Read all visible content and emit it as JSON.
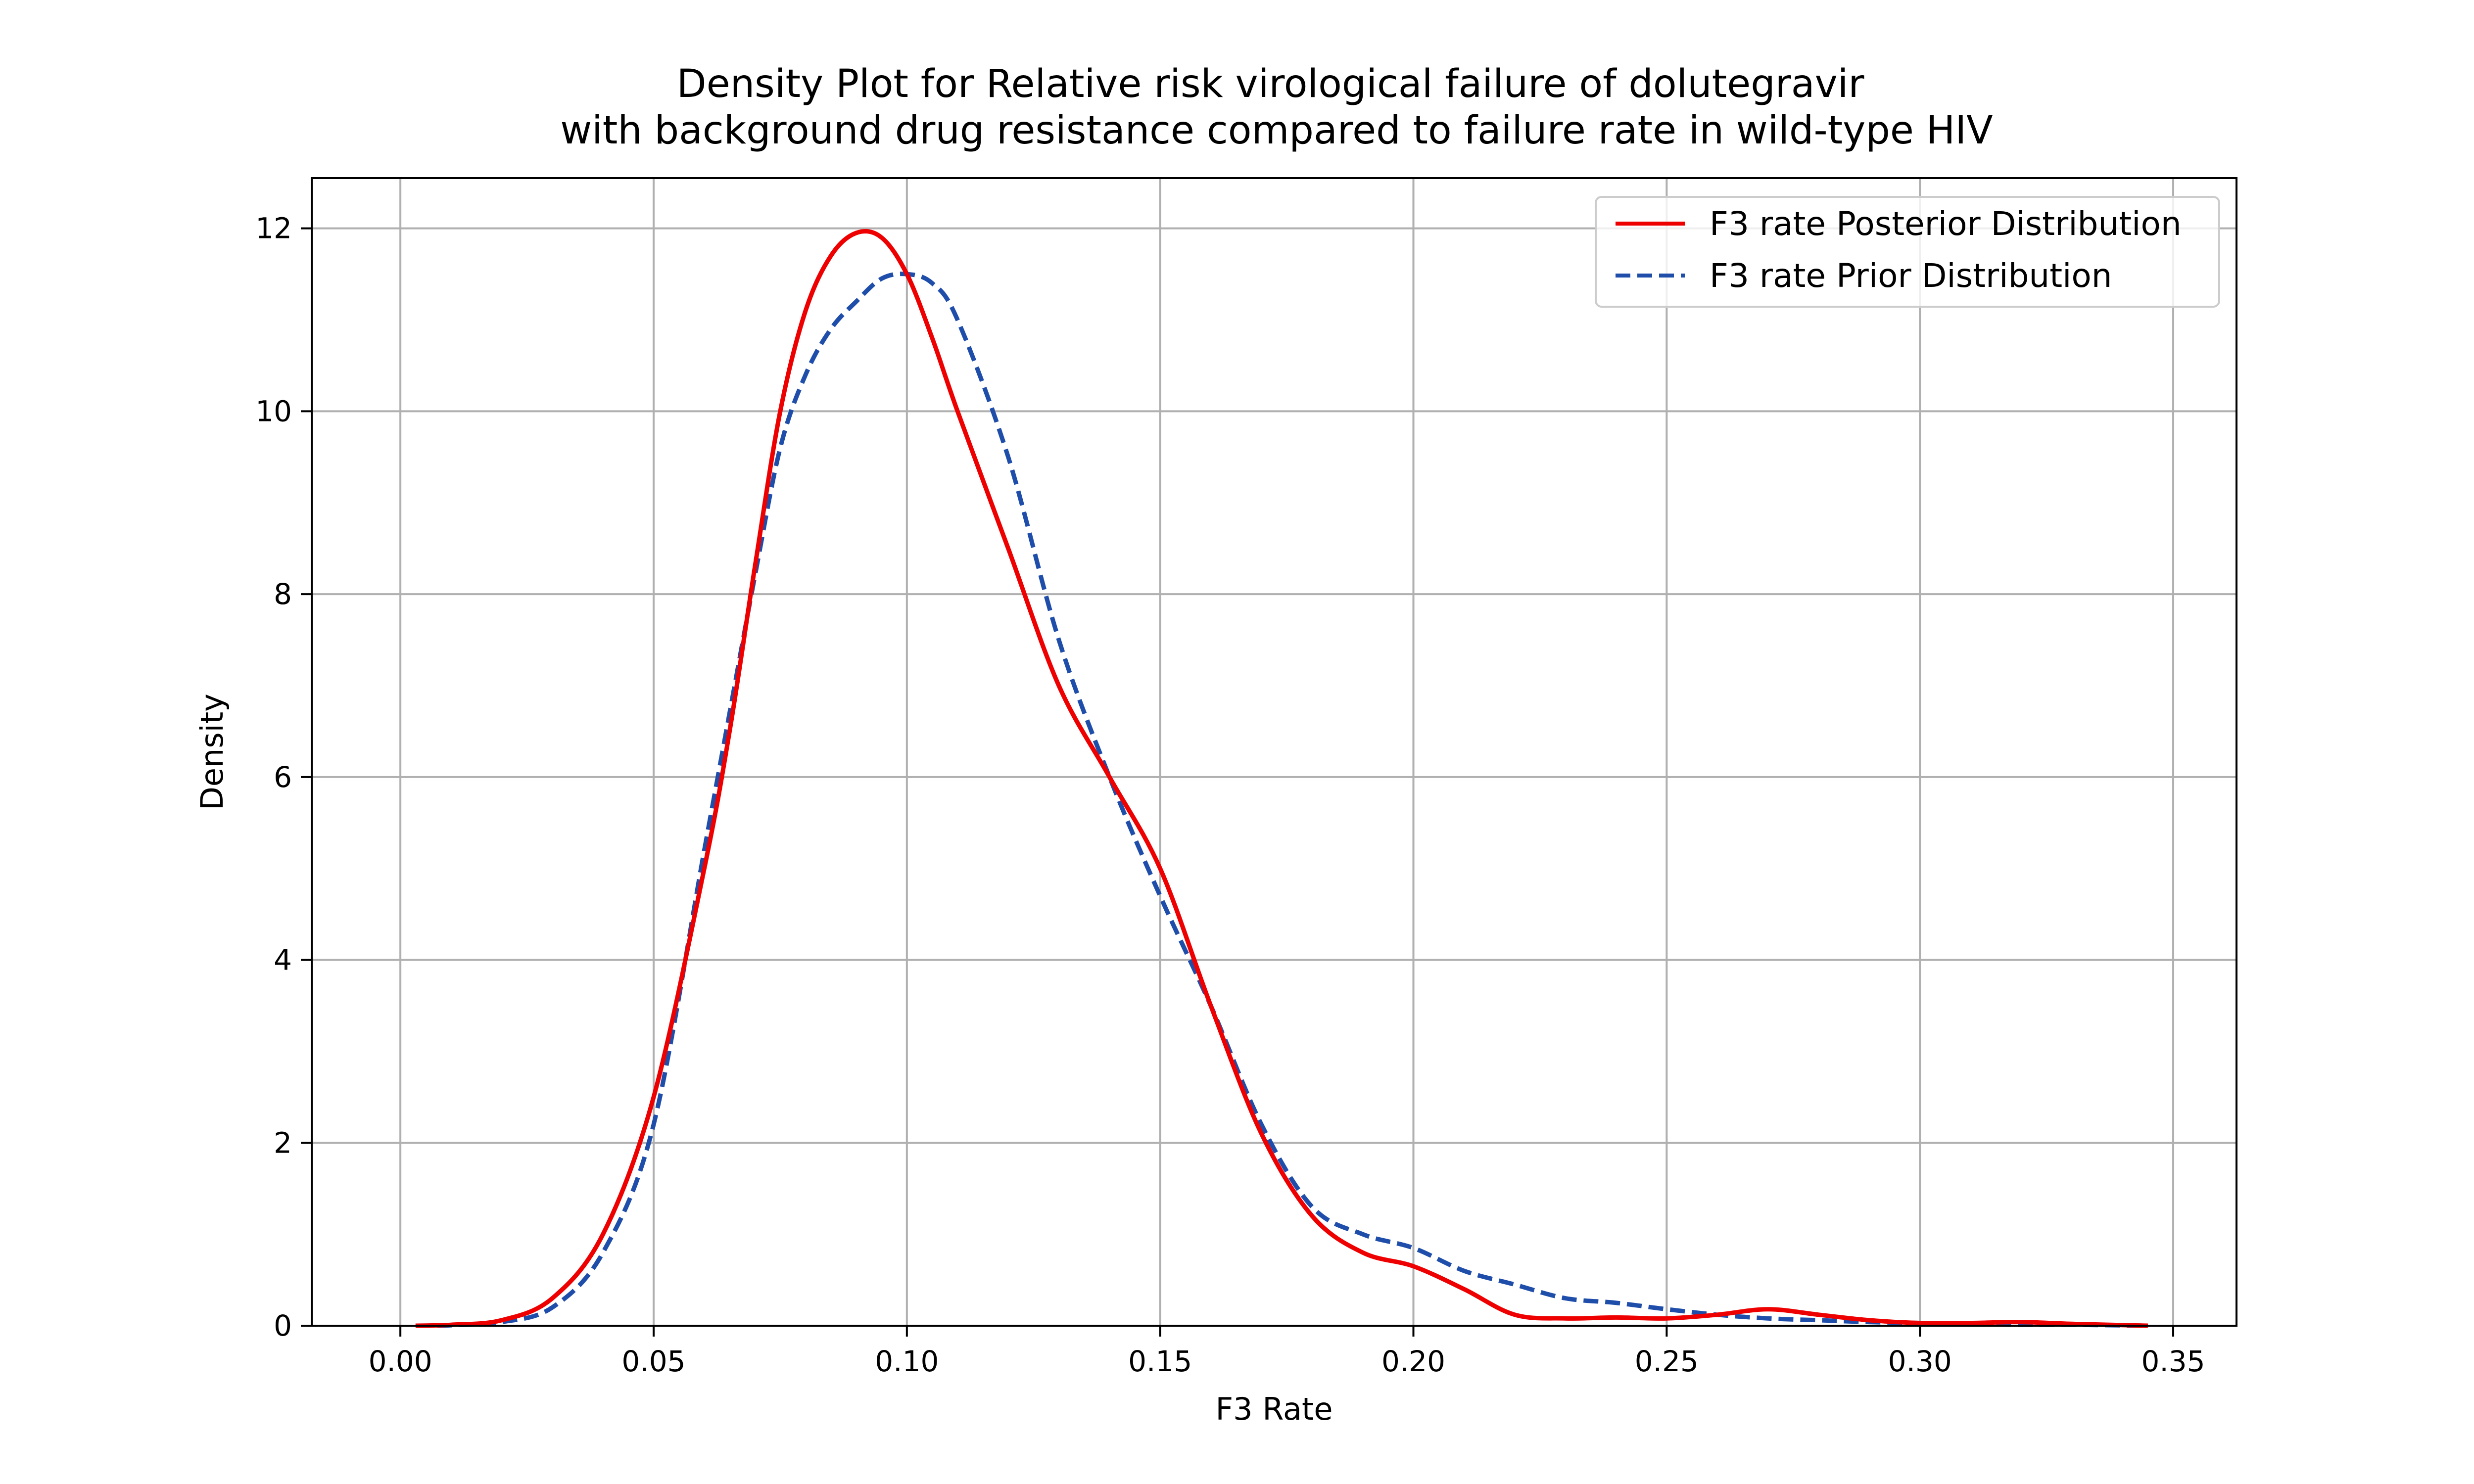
{
  "chart_data": {
    "type": "line",
    "title": "Density Plot for Relative risk virological failure of dolutegravir\nwith background drug resistance compared to failure rate in wild-type HIV",
    "xlabel": "F3 Rate",
    "ylabel": "Density",
    "xlim": [
      -0.0175,
      0.3625
    ],
    "ylim": [
      0,
      12.55
    ],
    "xticks": [
      0.0,
      0.05,
      0.1,
      0.15,
      0.2,
      0.25,
      0.3,
      0.35
    ],
    "xtick_labels": [
      "0.00",
      "0.05",
      "0.10",
      "0.15",
      "0.20",
      "0.25",
      "0.30",
      "0.35"
    ],
    "yticks": [
      0,
      2,
      4,
      6,
      8,
      10,
      12
    ],
    "ytick_labels": [
      "0",
      "2",
      "4",
      "6",
      "8",
      "10",
      "12"
    ],
    "grid": true,
    "legend_position": "top-right",
    "series": [
      {
        "name": "F3 rate Posterior Distribution",
        "color": "#ee0000",
        "dash": "solid",
        "x": [
          0.003,
          0.01,
          0.02,
          0.03,
          0.04,
          0.05,
          0.06,
          0.065,
          0.07,
          0.075,
          0.08,
          0.085,
          0.09,
          0.095,
          0.1,
          0.105,
          0.11,
          0.12,
          0.13,
          0.14,
          0.15,
          0.16,
          0.17,
          0.18,
          0.19,
          0.2,
          0.21,
          0.22,
          0.23,
          0.24,
          0.25,
          0.26,
          0.27,
          0.28,
          0.29,
          0.3,
          0.31,
          0.32,
          0.33,
          0.345
        ],
        "y": [
          0.0,
          0.01,
          0.06,
          0.3,
          1.0,
          2.5,
          5.0,
          6.5,
          8.3,
          10.0,
          11.1,
          11.7,
          11.95,
          11.9,
          11.5,
          10.8,
          10.0,
          8.5,
          7.0,
          6.0,
          5.0,
          3.5,
          2.1,
          1.2,
          0.8,
          0.65,
          0.4,
          0.12,
          0.08,
          0.09,
          0.08,
          0.12,
          0.18,
          0.12,
          0.06,
          0.03,
          0.03,
          0.04,
          0.02,
          0.0
        ]
      },
      {
        "name": "F3 rate Prior Distribution",
        "color": "#1f4eaa",
        "dash": "dashed",
        "x": [
          0.003,
          0.01,
          0.02,
          0.03,
          0.04,
          0.05,
          0.06,
          0.065,
          0.07,
          0.075,
          0.08,
          0.085,
          0.09,
          0.095,
          0.1,
          0.105,
          0.11,
          0.12,
          0.13,
          0.14,
          0.15,
          0.16,
          0.17,
          0.18,
          0.19,
          0.2,
          0.21,
          0.22,
          0.23,
          0.24,
          0.25,
          0.26,
          0.27,
          0.28,
          0.29,
          0.3,
          0.31,
          0.32,
          0.33,
          0.345
        ],
        "y": [
          0.0,
          0.005,
          0.04,
          0.2,
          0.8,
          2.2,
          5.2,
          6.7,
          8.2,
          9.6,
          10.4,
          10.9,
          11.2,
          11.45,
          11.5,
          11.4,
          11.0,
          9.5,
          7.5,
          6.0,
          4.7,
          3.5,
          2.2,
          1.3,
          1.0,
          0.85,
          0.6,
          0.45,
          0.3,
          0.25,
          0.18,
          0.12,
          0.08,
          0.06,
          0.04,
          0.03,
          0.02,
          0.01,
          0.01,
          0.0
        ]
      }
    ]
  }
}
